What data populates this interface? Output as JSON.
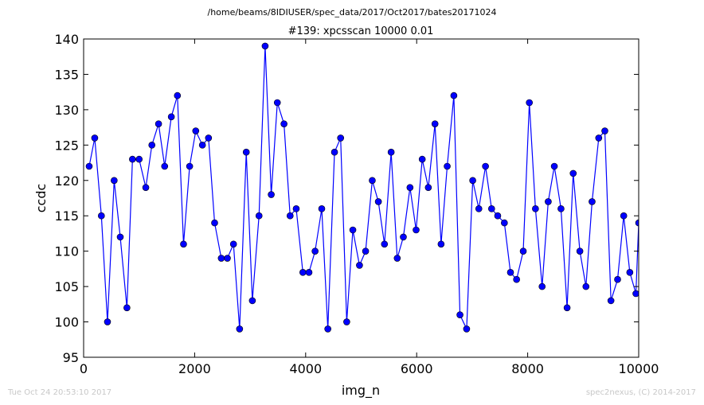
{
  "chart_data": {
    "type": "line",
    "suptitle": "/home/beams/8IDIUSER/spec_data/2017/Oct2017/bates20171024",
    "title": "#139: xpcsscan 10000 0.01",
    "xlabel": "img_n",
    "ylabel": "ccdc",
    "xlim": [
      0,
      10000
    ],
    "ylim": [
      95,
      140
    ],
    "xticks": [
      0,
      2000,
      4000,
      6000,
      8000,
      10000
    ],
    "yticks": [
      95,
      100,
      105,
      110,
      115,
      120,
      125,
      130,
      135,
      140
    ],
    "grid": false,
    "color": "#0000ff",
    "marker": "circle",
    "series": [
      {
        "x": [
          100,
          200,
          320,
          430,
          550,
          660,
          780,
          880,
          1000,
          1120,
          1230,
          1350,
          1460,
          1580,
          1690,
          1800,
          1910,
          2020,
          2140,
          2250,
          2360,
          2480,
          2590,
          2700,
          2810,
          2930,
          3040,
          3160,
          3270,
          3380,
          3490,
          3610,
          3720,
          3830,
          3950,
          4060,
          4170,
          4290,
          4400,
          4520,
          4630,
          4740,
          4850,
          4970,
          5080,
          5200,
          5310,
          5420,
          5540,
          5650,
          5760,
          5880,
          5990,
          6100,
          6210,
          6330,
          6440,
          6550,
          6670,
          6780,
          6900,
          7010,
          7120,
          7240,
          7350,
          7460,
          7580,
          7690,
          7800,
          7920,
          8030,
          8140,
          8260,
          8370,
          8480,
          8600,
          8710,
          8820,
          8940,
          9050,
          9160,
          9280,
          9390,
          9500,
          9620,
          9730,
          9840,
          9950,
          10000
        ],
        "y": [
          122,
          126,
          115,
          100,
          120,
          112,
          102,
          123,
          123,
          119,
          125,
          128,
          122,
          129,
          132,
          111,
          122,
          127,
          125,
          126,
          114,
          109,
          109,
          111,
          99,
          124,
          103,
          115,
          139,
          118,
          131,
          128,
          115,
          116,
          107,
          107,
          110,
          116,
          99,
          124,
          126,
          100,
          113,
          108,
          110,
          120,
          117,
          111,
          124,
          109,
          112,
          119,
          113,
          123,
          119,
          128,
          111,
          122,
          132,
          101,
          99,
          120,
          116,
          122,
          116,
          115,
          114,
          107,
          106,
          110,
          131,
          116,
          105,
          117,
          122,
          116,
          102,
          121,
          110,
          105,
          117,
          126,
          127,
          103,
          106,
          115,
          107,
          104,
          114
        ]
      }
    ]
  },
  "footer": {
    "timestamp": "Tue Oct 24 20:53:10 2017",
    "credit": "spec2nexus, (C) 2014-2017"
  }
}
